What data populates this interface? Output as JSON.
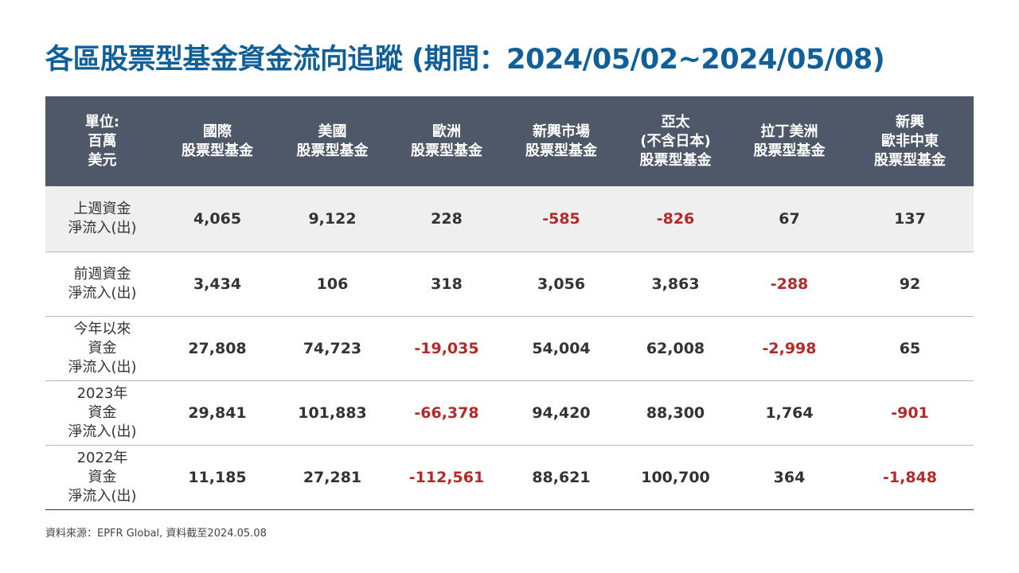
{
  "title": "各區股票型基金資金流向追蹤 (期間：2024/05/02~2024/05/08)",
  "table": {
    "header": [
      [
        "單位:",
        "百萬",
        "美元"
      ],
      [
        "國際",
        "股票型基金"
      ],
      [
        "美國",
        "股票型基金"
      ],
      [
        "歐洲",
        "股票型基金"
      ],
      [
        "新興市場",
        "股票型基金"
      ],
      [
        "亞太",
        "(不含日本)",
        "股票型基金"
      ],
      [
        "拉丁美洲",
        "股票型基金"
      ],
      [
        "新興",
        "歐非中東",
        "股票型基金"
      ]
    ],
    "rows": [
      {
        "label": [
          "上週資金",
          "淨流入(出)"
        ],
        "values": [
          "4,065",
          "9,122",
          "228",
          "-585",
          "-826",
          "67",
          "137"
        ]
      },
      {
        "label": [
          "前週資金",
          "淨流入(出)"
        ],
        "values": [
          "3,434",
          "106",
          "318",
          "3,056",
          "3,863",
          "-288",
          "92"
        ]
      },
      {
        "label": [
          "今年以來",
          "資金",
          "淨流入(出)"
        ],
        "values": [
          "27,808",
          "74,723",
          "-19,035",
          "54,004",
          "62,008",
          "-2,998",
          "65"
        ]
      },
      {
        "label": [
          "2023年",
          "資金",
          "淨流入(出)"
        ],
        "values": [
          "29,841",
          "101,883",
          "-66,378",
          "94,420",
          "88,300",
          "1,764",
          "-901"
        ]
      },
      {
        "label": [
          "2022年",
          "資金",
          "淨流入(出)"
        ],
        "values": [
          "11,185",
          "27,281",
          "-112,561",
          "88,621",
          "100,700",
          "364",
          "-1,848"
        ]
      }
    ]
  },
  "source": "資料來源：EPFR Global, 資料截至2024.05.08",
  "colors": {
    "title": "#0f5f98",
    "header_bg": "#4f5869",
    "negative": "#b42a2a",
    "shaded_row": "#efefef"
  }
}
